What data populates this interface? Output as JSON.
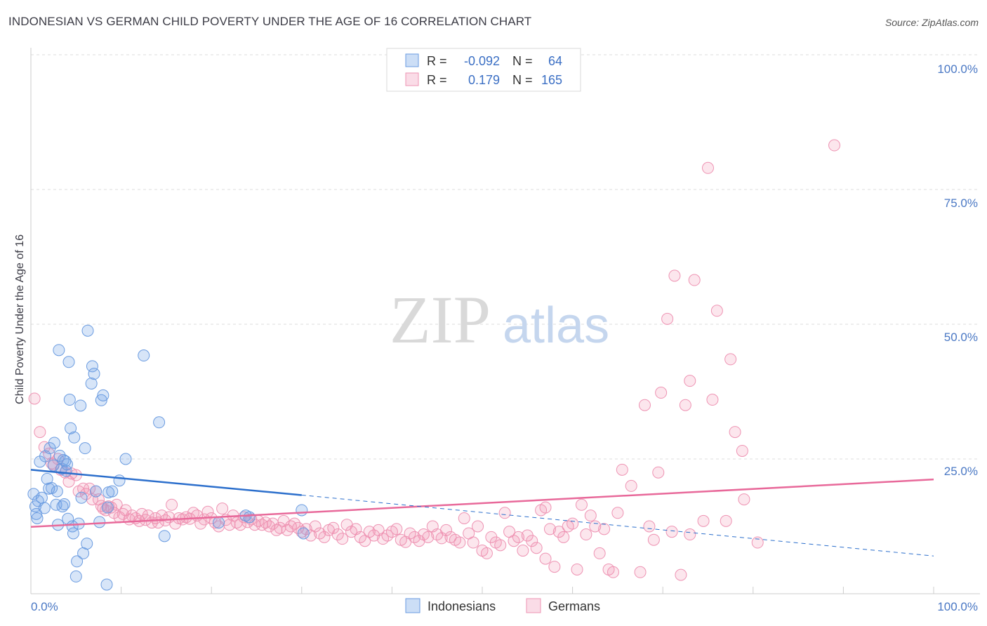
{
  "title": "INDONESIAN VS GERMAN CHILD POVERTY UNDER THE AGE OF 16 CORRELATION CHART",
  "source": "Source: ZipAtlas.com",
  "watermark": {
    "zip": "ZIP",
    "atlas": "atlas"
  },
  "colors": {
    "indonesian_fill": "rgba(110,160,230,0.28)",
    "indonesian_stroke": "#6a9be0",
    "indonesian_line": "#2c6fcc",
    "german_fill": "rgba(240,140,175,0.22)",
    "german_stroke": "#ee93b3",
    "german_line": "#e8699a"
  },
  "legend": {
    "rows": [
      {
        "r_label": "R =",
        "r_value": "-0.092",
        "n_label": "N =",
        "n_value": "64"
      },
      {
        "r_label": "R =",
        "r_value": "0.179",
        "n_label": "N =",
        "n_value": "165"
      }
    ]
  },
  "bottom_legend": {
    "indonesians": "Indonesians",
    "germans": "Germans"
  },
  "chart_data": {
    "type": "scatter",
    "title": "INDONESIAN VS GERMAN CHILD POVERTY UNDER THE AGE OF 16 CORRELATION CHART",
    "ylabel": "Child Poverty Under the Age of 16",
    "xlabel": "",
    "xlim": [
      0,
      100
    ],
    "ylim": [
      0,
      100
    ],
    "x_tick_labels": [
      "0.0%",
      "100.0%"
    ],
    "y_tick_labels": [
      "100.0%",
      "75.0%",
      "50.0%",
      "25.0%"
    ],
    "y_tick_values": [
      100,
      75,
      50,
      25
    ],
    "series": [
      {
        "name": "Indonesians",
        "r": -0.092,
        "n": 64,
        "trend": {
          "x0": 0,
          "y0": 23.0,
          "x1": 30,
          "y1": 18.3,
          "dash_x1": 100,
          "dash_y1": 7.0
        },
        "points": [
          [
            0.3,
            18.5
          ],
          [
            0.5,
            16.2
          ],
          [
            0.6,
            14.8
          ],
          [
            0.8,
            17.2
          ],
          [
            1.0,
            24.5
          ],
          [
            1.2,
            17.8
          ],
          [
            1.5,
            15.9
          ],
          [
            1.6,
            25.5
          ],
          [
            1.8,
            21.3
          ],
          [
            2.0,
            19.5
          ],
          [
            2.1,
            27.0
          ],
          [
            2.3,
            19.6
          ],
          [
            2.5,
            23.8
          ],
          [
            2.6,
            28.0
          ],
          [
            2.8,
            16.5
          ],
          [
            2.9,
            19.0
          ],
          [
            3.0,
            12.8
          ],
          [
            3.1,
            45.2
          ],
          [
            3.2,
            25.6
          ],
          [
            3.4,
            23.2
          ],
          [
            3.5,
            16.2
          ],
          [
            3.6,
            24.8
          ],
          [
            3.7,
            16.6
          ],
          [
            3.8,
            24.6
          ],
          [
            3.9,
            22.8
          ],
          [
            4.0,
            24.0
          ],
          [
            4.1,
            13.9
          ],
          [
            4.2,
            43.0
          ],
          [
            4.3,
            36.0
          ],
          [
            4.4,
            30.7
          ],
          [
            4.6,
            12.5
          ],
          [
            4.7,
            11.2
          ],
          [
            4.8,
            29.0
          ],
          [
            5.0,
            3.2
          ],
          [
            5.1,
            6.0
          ],
          [
            5.3,
            13.0
          ],
          [
            5.5,
            34.9
          ],
          [
            5.6,
            17.8
          ],
          [
            5.8,
            7.5
          ],
          [
            6.0,
            27.0
          ],
          [
            6.2,
            9.3
          ],
          [
            6.3,
            48.8
          ],
          [
            6.7,
            39.0
          ],
          [
            6.8,
            42.2
          ],
          [
            7.0,
            40.8
          ],
          [
            7.2,
            19.0
          ],
          [
            7.6,
            13.3
          ],
          [
            7.8,
            35.9
          ],
          [
            8.0,
            36.8
          ],
          [
            8.4,
            1.7
          ],
          [
            8.5,
            16.0
          ],
          [
            8.6,
            18.8
          ],
          [
            9.0,
            19.0
          ],
          [
            9.8,
            21.0
          ],
          [
            10.5,
            25.0
          ],
          [
            12.5,
            44.2
          ],
          [
            14.2,
            31.8
          ],
          [
            14.8,
            10.7
          ],
          [
            20.8,
            13.2
          ],
          [
            23.8,
            14.5
          ],
          [
            24.2,
            14.2
          ],
          [
            30.0,
            15.5
          ],
          [
            30.2,
            11.2
          ],
          [
            0.7,
            14.0
          ]
        ]
      },
      {
        "name": "Germans",
        "r": 0.179,
        "n": 165,
        "trend": {
          "x0": 0,
          "y0": 12.4,
          "x1": 100,
          "y1": 21.2
        },
        "points": [
          [
            0.4,
            36.2
          ],
          [
            1.0,
            30.0
          ],
          [
            1.5,
            27.2
          ],
          [
            2.0,
            26.0
          ],
          [
            2.3,
            24.2
          ],
          [
            2.5,
            24.0
          ],
          [
            3.0,
            25.0
          ],
          [
            3.3,
            23.0
          ],
          [
            3.8,
            22.5
          ],
          [
            4.2,
            20.8
          ],
          [
            4.5,
            22.3
          ],
          [
            5.0,
            22.0
          ],
          [
            5.3,
            19.0
          ],
          [
            5.8,
            19.5
          ],
          [
            6.1,
            18.5
          ],
          [
            6.5,
            19.5
          ],
          [
            6.8,
            17.5
          ],
          [
            7.2,
            19.0
          ],
          [
            7.5,
            17.5
          ],
          [
            7.8,
            16.3
          ],
          [
            8.0,
            15.8
          ],
          [
            8.3,
            15.5
          ],
          [
            8.6,
            16.2
          ],
          [
            8.9,
            16.0
          ],
          [
            9.2,
            15.0
          ],
          [
            9.5,
            16.5
          ],
          [
            9.8,
            14.2
          ],
          [
            10.2,
            14.8
          ],
          [
            10.5,
            15.5
          ],
          [
            10.9,
            13.8
          ],
          [
            11.2,
            14.5
          ],
          [
            11.6,
            14.0
          ],
          [
            12.0,
            13.5
          ],
          [
            12.3,
            14.8
          ],
          [
            12.7,
            13.7
          ],
          [
            13.0,
            14.5
          ],
          [
            13.4,
            13.2
          ],
          [
            13.8,
            14.0
          ],
          [
            14.1,
            13.2
          ],
          [
            14.5,
            14.5
          ],
          [
            14.9,
            13.6
          ],
          [
            15.3,
            14.2
          ],
          [
            15.6,
            16.5
          ],
          [
            16.0,
            13.0
          ],
          [
            16.4,
            14.0
          ],
          [
            16.8,
            13.8
          ],
          [
            17.2,
            14.2
          ],
          [
            17.6,
            13.9
          ],
          [
            18.0,
            15.0
          ],
          [
            18.4,
            14.5
          ],
          [
            18.8,
            13.0
          ],
          [
            19.2,
            13.8
          ],
          [
            19.6,
            15.2
          ],
          [
            20.0,
            14.0
          ],
          [
            20.4,
            13.2
          ],
          [
            20.8,
            12.5
          ],
          [
            21.2,
            15.8
          ],
          [
            21.6,
            13.7
          ],
          [
            22.0,
            12.8
          ],
          [
            22.4,
            14.5
          ],
          [
            22.8,
            13.2
          ],
          [
            23.2,
            12.8
          ],
          [
            23.6,
            14.2
          ],
          [
            24.0,
            13.3
          ],
          [
            24.4,
            13.8
          ],
          [
            24.8,
            12.8
          ],
          [
            25.2,
            13.5
          ],
          [
            25.6,
            12.8
          ],
          [
            26.0,
            13.2
          ],
          [
            26.4,
            12.5
          ],
          [
            26.8,
            13.0
          ],
          [
            27.2,
            11.8
          ],
          [
            27.6,
            12.2
          ],
          [
            28.0,
            13.5
          ],
          [
            28.4,
            11.8
          ],
          [
            28.8,
            12.5
          ],
          [
            29.2,
            13.0
          ],
          [
            29.6,
            12.2
          ],
          [
            30.0,
            11.5
          ],
          [
            30.5,
            12.0
          ],
          [
            31.0,
            10.8
          ],
          [
            31.5,
            12.5
          ],
          [
            32.0,
            11.2
          ],
          [
            32.5,
            10.5
          ],
          [
            33.0,
            11.8
          ],
          [
            33.5,
            12.2
          ],
          [
            34.0,
            11.0
          ],
          [
            34.5,
            10.2
          ],
          [
            35.0,
            12.8
          ],
          [
            35.5,
            11.5
          ],
          [
            36.0,
            12.0
          ],
          [
            36.5,
            10.5
          ],
          [
            37.0,
            9.8
          ],
          [
            37.5,
            11.5
          ],
          [
            38.0,
            10.8
          ],
          [
            38.5,
            11.8
          ],
          [
            39.0,
            10.2
          ],
          [
            39.5,
            10.8
          ],
          [
            40.0,
            11.5
          ],
          [
            40.5,
            12.0
          ],
          [
            41.0,
            10.0
          ],
          [
            41.5,
            9.6
          ],
          [
            42.0,
            11.2
          ],
          [
            42.5,
            10.5
          ],
          [
            43.0,
            9.8
          ],
          [
            43.5,
            11.0
          ],
          [
            44.0,
            10.5
          ],
          [
            44.5,
            12.5
          ],
          [
            45.0,
            11.0
          ],
          [
            45.5,
            10.3
          ],
          [
            46.0,
            11.8
          ],
          [
            46.5,
            10.5
          ],
          [
            47.0,
            10.0
          ],
          [
            47.5,
            9.5
          ],
          [
            48.0,
            14.0
          ],
          [
            48.5,
            11.2
          ],
          [
            49.0,
            9.5
          ],
          [
            49.5,
            12.5
          ],
          [
            50.0,
            8.0
          ],
          [
            50.5,
            7.5
          ],
          [
            51.0,
            10.5
          ],
          [
            51.5,
            9.5
          ],
          [
            52.0,
            9.0
          ],
          [
            52.5,
            15.0
          ],
          [
            53.0,
            11.5
          ],
          [
            53.5,
            9.8
          ],
          [
            54.0,
            10.5
          ],
          [
            54.5,
            8.0
          ],
          [
            55.0,
            10.8
          ],
          [
            55.5,
            9.8
          ],
          [
            56.0,
            8.5
          ],
          [
            56.5,
            15.5
          ],
          [
            57.0,
            6.5
          ],
          [
            57.5,
            12.0
          ],
          [
            58.0,
            5.0
          ],
          [
            58.5,
            11.5
          ],
          [
            59.0,
            10.5
          ],
          [
            59.5,
            12.5
          ],
          [
            60.0,
            13.0
          ],
          [
            60.5,
            4.5
          ],
          [
            61.0,
            16.5
          ],
          [
            61.5,
            11.0
          ],
          [
            62.0,
            14.5
          ],
          [
            62.5,
            12.5
          ],
          [
            63.0,
            7.5
          ],
          [
            63.5,
            12.0
          ],
          [
            64.0,
            4.5
          ],
          [
            64.5,
            4.0
          ],
          [
            65.0,
            15.0
          ],
          [
            65.5,
            23.0
          ],
          [
            66.5,
            20.0
          ],
          [
            67.5,
            4.0
          ],
          [
            68.5,
            12.5
          ],
          [
            69.0,
            10.0
          ],
          [
            69.5,
            22.5
          ],
          [
            71.0,
            11.5
          ],
          [
            72.0,
            3.5
          ],
          [
            73.0,
            11.0
          ],
          [
            74.5,
            13.5
          ],
          [
            77.0,
            13.5
          ],
          [
            79.0,
            17.5
          ],
          [
            80.5,
            9.5
          ],
          [
            68.0,
            35.0
          ],
          [
            69.8,
            37.3
          ],
          [
            70.5,
            51.0
          ],
          [
            71.3,
            59.0
          ],
          [
            72.5,
            35.0
          ],
          [
            73.0,
            39.5
          ],
          [
            73.5,
            58.2
          ],
          [
            75.5,
            36.0
          ],
          [
            76.0,
            52.5
          ],
          [
            77.5,
            43.5
          ],
          [
            78.0,
            30.0
          ],
          [
            78.8,
            26.5
          ],
          [
            75.0,
            79.0
          ],
          [
            89.0,
            83.2
          ],
          [
            57.0,
            16.0
          ]
        ]
      }
    ]
  }
}
